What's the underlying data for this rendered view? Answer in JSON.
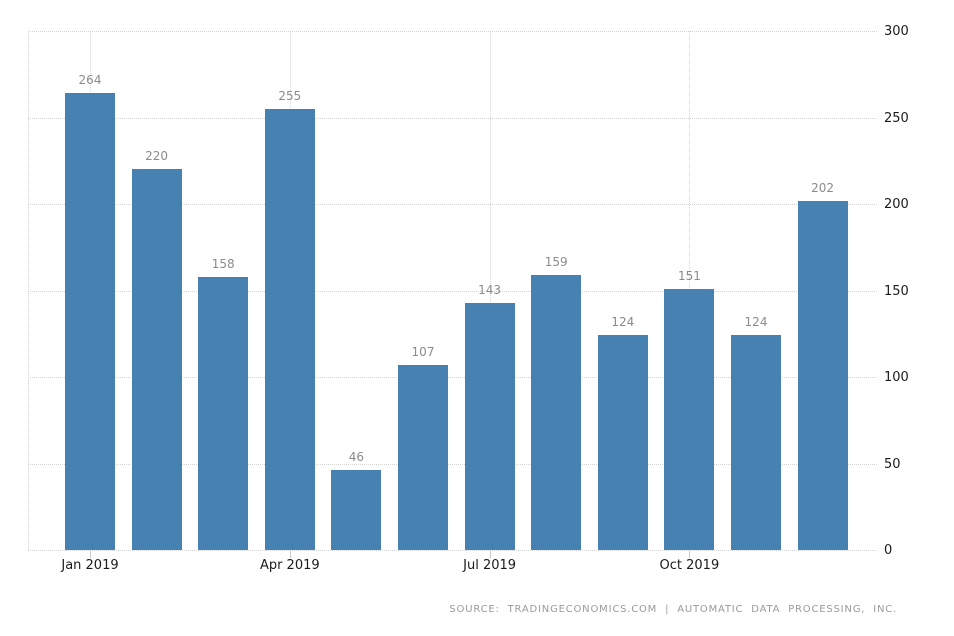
{
  "chart_data": {
    "type": "bar",
    "title": "",
    "values": [
      264,
      220,
      158,
      255,
      46,
      107,
      143,
      159,
      124,
      151,
      124,
      202
    ],
    "bar_value_labels": [
      "264",
      "220",
      "158",
      "255",
      "46",
      "107",
      "143",
      "159",
      "124",
      "151",
      "124",
      "202"
    ],
    "x_ticks": [
      {
        "label": "Jan 2019",
        "index": 0
      },
      {
        "label": "Apr 2019",
        "index": 3
      },
      {
        "label": "Jul 2019",
        "index": 6
      },
      {
        "label": "Oct 2019",
        "index": 9
      }
    ],
    "y_ticks": [
      "300",
      "250",
      "200",
      "150",
      "100",
      "50",
      "0"
    ],
    "ylim": [
      0,
      300
    ],
    "y_axis_position": "right",
    "grid_style": "dotted",
    "legend": "none",
    "colors": {
      "bar": "#4681b2",
      "gridline": "#d4d4d4",
      "bar_label": "#8b8b8b",
      "axis_label": "#1b1b1b",
      "source_text": "#9a9a9a"
    },
    "source": "SOURCE: TRADINGECONOMICS.COM | AUTOMATIC DATA PROCESSING, INC."
  }
}
